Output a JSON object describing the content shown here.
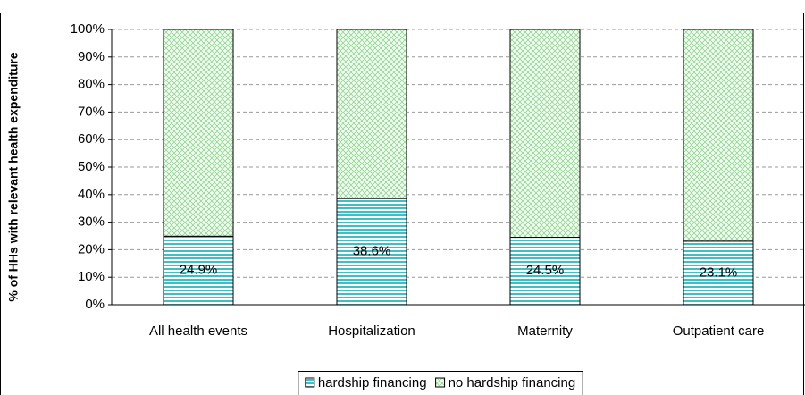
{
  "chart_data": {
    "type": "stacked_bar",
    "y_label": "% of HHs with relevant health expenditure",
    "categories": [
      "All health events",
      "Hospitalization",
      "Maternity",
      "Outpatient care"
    ],
    "series": [
      {
        "name": "hardship financing",
        "color": "#00a8b0",
        "values": [
          24.9,
          38.6,
          24.5,
          23.1
        ],
        "value_labels": [
          "24.9%",
          "38.6%",
          "24.5%",
          "23.1%"
        ]
      },
      {
        "name": "no hardship financing",
        "color": "#8fd68f",
        "values": [
          75.1,
          61.4,
          75.5,
          76.9
        ]
      }
    ],
    "ylim": [
      0,
      100
    ],
    "yticks": [
      {
        "value": 0,
        "label": "0%"
      },
      {
        "value": 10,
        "label": "10%"
      },
      {
        "value": 20,
        "label": "20%"
      },
      {
        "value": 30,
        "label": "30%"
      },
      {
        "value": 40,
        "label": "40%"
      },
      {
        "value": 50,
        "label": "50%"
      },
      {
        "value": 60,
        "label": "60%"
      },
      {
        "value": 70,
        "label": "70%"
      },
      {
        "value": 80,
        "label": "80%"
      },
      {
        "value": 90,
        "label": "90%"
      },
      {
        "value": 100,
        "label": "100%"
      }
    ],
    "grid": true,
    "legend": "bottom"
  }
}
